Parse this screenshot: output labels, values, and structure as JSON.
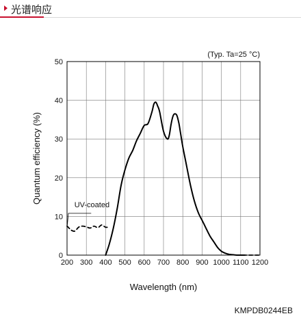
{
  "header": {
    "title": "光谱响应",
    "accent_color": "#c8102e",
    "icon": "triangle-bullet-icon"
  },
  "chart_data": {
    "type": "line",
    "title": "",
    "annotation": "(Typ. Ta=25 °C)",
    "xlabel": "Wavelength (nm)",
    "ylabel": "Quantum efficiency (%)",
    "xlim": [
      200,
      1200
    ],
    "ylim": [
      0,
      50
    ],
    "x_ticks": [
      200,
      300,
      400,
      500,
      600,
      700,
      800,
      900,
      1000,
      1100,
      1200
    ],
    "y_ticks": [
      0,
      10,
      20,
      30,
      40,
      50
    ],
    "grid": true,
    "series": [
      {
        "name": "",
        "style": "solid",
        "color": "#000000",
        "x": [
          400,
          420,
          440,
          460,
          480,
          500,
          520,
          540,
          560,
          580,
          600,
          620,
          640,
          650,
          660,
          670,
          680,
          700,
          720,
          730,
          740,
          750,
          760,
          770,
          780,
          790,
          800,
          820,
          840,
          860,
          880,
          900,
          920,
          940,
          960,
          980,
          1000,
          1020,
          1040,
          1060,
          1080,
          1100,
          1120
        ],
        "y": [
          0,
          3,
          7,
          12,
          18,
          22,
          25,
          27,
          29.5,
          31.5,
          33.5,
          34,
          37,
          39,
          39.5,
          38.5,
          37,
          32,
          30,
          31,
          34,
          36,
          36.5,
          36,
          34,
          31,
          28,
          23,
          18,
          14,
          11,
          9,
          7,
          5,
          3.5,
          2,
          1,
          0.5,
          0.2,
          0.1,
          0,
          0,
          0
        ]
      },
      {
        "name": "UV-coated",
        "style": "dashed",
        "color": "#000000",
        "x": [
          200,
          210,
          220,
          240,
          260,
          280,
          300,
          320,
          340,
          360,
          380,
          400,
          420
        ],
        "y": [
          7.5,
          7,
          6.5,
          6.2,
          7.2,
          7.5,
          7.3,
          7.0,
          7.5,
          7.1,
          7.8,
          7.2,
          7.3
        ]
      },
      {
        "name": "",
        "style": "dashed",
        "color": "#000000",
        "x": [
          1080,
          1100,
          1120,
          1140,
          1160,
          1180,
          1200
        ],
        "y": [
          0,
          0,
          0,
          0,
          0,
          0,
          0
        ]
      }
    ]
  },
  "figure_code": "KMPDB0244EB"
}
